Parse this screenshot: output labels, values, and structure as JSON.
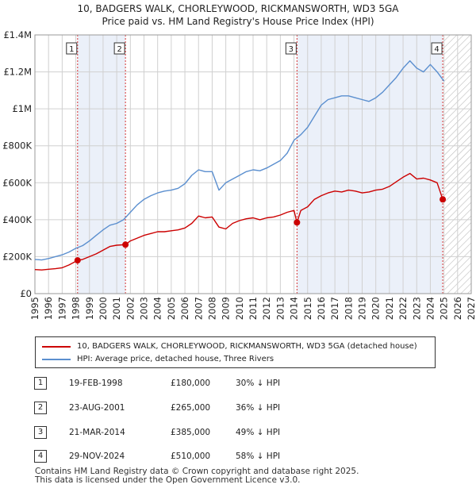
{
  "title_line1": "10, BADGERS WALK, CHORLEYWOOD, RICKMANSWORTH, WD3 5GA",
  "title_line2": "Price paid vs. HM Land Registry's House Price Index (HPI)",
  "colors": {
    "price": "#cc0000",
    "hpi": "#5b8fcf",
    "shade": "#dde6f5",
    "grid": "#d0d0d0"
  },
  "chart_data": {
    "type": "line",
    "xlim": [
      1995,
      2027
    ],
    "ylim": [
      0,
      1400000
    ],
    "y_ticks": [
      {
        "value": 0,
        "label": "£0"
      },
      {
        "value": 200000,
        "label": "£200K"
      },
      {
        "value": 400000,
        "label": "£400K"
      },
      {
        "value": 600000,
        "label": "£600K"
      },
      {
        "value": 800000,
        "label": "£800K"
      },
      {
        "value": 1000000,
        "label": "£1M"
      },
      {
        "value": 1200000,
        "label": "£1.2M"
      },
      {
        "value": 1400000,
        "label": "£1.4M"
      }
    ],
    "x_ticks": [
      "1995",
      "1996",
      "1997",
      "1998",
      "1999",
      "2000",
      "2001",
      "2002",
      "2003",
      "2004",
      "2005",
      "2006",
      "2007",
      "2008",
      "2009",
      "2010",
      "2011",
      "2012",
      "2013",
      "2014",
      "2015",
      "2016",
      "2017",
      "2018",
      "2019",
      "2020",
      "2021",
      "2022",
      "2023",
      "2024",
      "2025",
      "2026",
      "2027"
    ],
    "shaded_ranges": [
      [
        1998.13,
        2001.64
      ],
      [
        2014.22,
        2024.91
      ]
    ],
    "forecast_start": 2025.0,
    "series": [
      {
        "name": "10, BADGERS WALK, CHORLEYWOOD, RICKMANSWORTH, WD3 5GA (detached house)",
        "color": "#cc0000",
        "x": [
          1995.0,
          1995.5,
          1996.0,
          1996.5,
          1997.0,
          1997.5,
          1998.13,
          1998.5,
          1999.0,
          1999.5,
          2000.0,
          2000.5,
          2001.0,
          2001.64,
          2002.0,
          2002.5,
          2003.0,
          2003.5,
          2004.0,
          2004.5,
          2005.0,
          2005.5,
          2006.0,
          2006.5,
          2007.0,
          2007.5,
          2008.0,
          2008.5,
          2009.0,
          2009.5,
          2010.0,
          2010.5,
          2011.0,
          2011.5,
          2012.0,
          2012.5,
          2013.0,
          2013.5,
          2014.0,
          2014.22,
          2014.5,
          2015.0,
          2015.5,
          2016.0,
          2016.5,
          2017.0,
          2017.5,
          2018.0,
          2018.5,
          2019.0,
          2019.5,
          2020.0,
          2020.5,
          2021.0,
          2021.5,
          2022.0,
          2022.5,
          2023.0,
          2023.5,
          2024.0,
          2024.5,
          2024.91,
          2025.0
        ],
        "values": [
          130000,
          128000,
          132000,
          135000,
          140000,
          155000,
          180000,
          185000,
          200000,
          215000,
          235000,
          255000,
          262000,
          265000,
          285000,
          300000,
          315000,
          325000,
          335000,
          335000,
          340000,
          345000,
          355000,
          380000,
          420000,
          410000,
          415000,
          360000,
          350000,
          380000,
          395000,
          405000,
          410000,
          400000,
          410000,
          415000,
          425000,
          440000,
          450000,
          385000,
          450000,
          470000,
          510000,
          530000,
          545000,
          555000,
          550000,
          560000,
          555000,
          545000,
          550000,
          560000,
          565000,
          580000,
          605000,
          630000,
          650000,
          620000,
          625000,
          615000,
          600000,
          510000,
          495000
        ]
      },
      {
        "name": "HPI: Average price, detached house, Three Rivers",
        "color": "#5b8fcf",
        "x": [
          1995.0,
          1995.5,
          1996.0,
          1996.5,
          1997.0,
          1997.5,
          1998.0,
          1998.5,
          1999.0,
          1999.5,
          2000.0,
          2000.5,
          2001.0,
          2001.5,
          2002.0,
          2002.5,
          2003.0,
          2003.5,
          2004.0,
          2004.5,
          2005.0,
          2005.5,
          2006.0,
          2006.5,
          2007.0,
          2007.5,
          2008.0,
          2008.5,
          2009.0,
          2009.5,
          2010.0,
          2010.5,
          2011.0,
          2011.5,
          2012.0,
          2012.5,
          2013.0,
          2013.5,
          2014.0,
          2014.5,
          2015.0,
          2015.5,
          2016.0,
          2016.5,
          2017.0,
          2017.5,
          2018.0,
          2018.5,
          2019.0,
          2019.5,
          2020.0,
          2020.5,
          2021.0,
          2021.5,
          2022.0,
          2022.5,
          2023.0,
          2023.5,
          2024.0,
          2024.5,
          2025.0
        ],
        "values": [
          185000,
          182000,
          190000,
          200000,
          210000,
          225000,
          245000,
          260000,
          285000,
          315000,
          345000,
          370000,
          380000,
          400000,
          440000,
          480000,
          510000,
          530000,
          545000,
          555000,
          560000,
          570000,
          595000,
          640000,
          670000,
          660000,
          660000,
          560000,
          600000,
          620000,
          640000,
          660000,
          670000,
          665000,
          680000,
          700000,
          720000,
          760000,
          830000,
          860000,
          900000,
          960000,
          1020000,
          1050000,
          1060000,
          1070000,
          1070000,
          1060000,
          1050000,
          1040000,
          1060000,
          1090000,
          1130000,
          1170000,
          1220000,
          1260000,
          1220000,
          1200000,
          1240000,
          1200000,
          1150000
        ]
      }
    ],
    "transactions": [
      {
        "num": "1",
        "x": 1998.13,
        "value": 180000
      },
      {
        "num": "2",
        "x": 2001.64,
        "value": 265000
      },
      {
        "num": "3",
        "x": 2014.22,
        "value": 385000
      },
      {
        "num": "4",
        "x": 2024.91,
        "value": 510000
      }
    ]
  },
  "legend": {
    "price_label": "10, BADGERS WALK, CHORLEYWOOD, RICKMANSWORTH, WD3 5GA (detached house)",
    "hpi_label": "HPI: Average price, detached house, Three Rivers"
  },
  "transactions_table": [
    {
      "num": "1",
      "date": "19-FEB-1998",
      "price": "£180,000",
      "hpi": "30% ↓ HPI"
    },
    {
      "num": "2",
      "date": "23-AUG-2001",
      "price": "£265,000",
      "hpi": "36% ↓ HPI"
    },
    {
      "num": "3",
      "date": "21-MAR-2014",
      "price": "£385,000",
      "hpi": "49% ↓ HPI"
    },
    {
      "num": "4",
      "date": "29-NOV-2024",
      "price": "£510,000",
      "hpi": "58% ↓ HPI"
    }
  ],
  "footer_line1": "Contains HM Land Registry data © Crown copyright and database right 2025.",
  "footer_line2": "This data is licensed under the Open Government Licence v3.0."
}
